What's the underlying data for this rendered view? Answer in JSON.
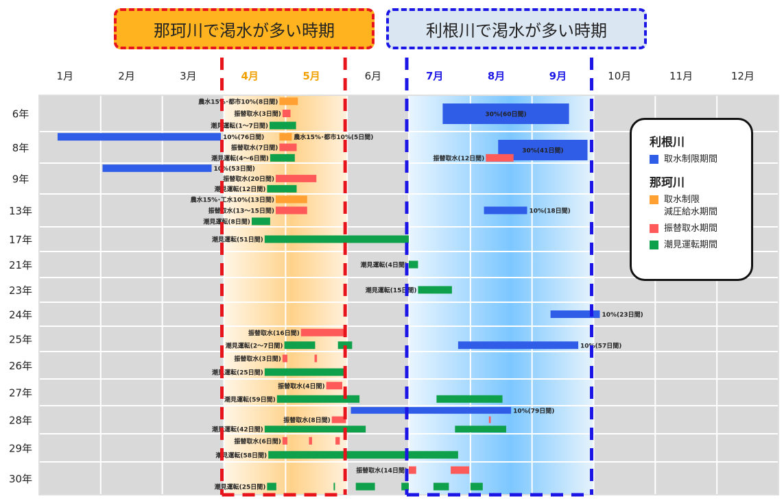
{
  "colors": {
    "tone_restriction": "#2f5de8",
    "naka_restriction": "#ffa033",
    "naka_transfer": "#ff5a5a",
    "naka_tidal": "#0ea04a",
    "naka_zone": "#ffb31f",
    "tone_zone": "#7cc7ff",
    "naka_month_text": "#f0a000",
    "tone_month_text": "#1b16e6"
  },
  "header": {
    "naka_period_label": "那珂川で渇水が多い時期",
    "tone_period_label": "利根川で渇水が多い時期"
  },
  "legend": {
    "tone_title": "利根川",
    "tone_items": [
      {
        "label": "取水制限期間",
        "color_key": "tone_restriction"
      }
    ],
    "naka_title": "那珂川",
    "naka_items": [
      {
        "label": "取水制限\n減圧給水期間",
        "color_key": "naka_restriction"
      },
      {
        "label": "振替取水期間",
        "color_key": "naka_transfer"
      },
      {
        "label": "潮見運転期間",
        "color_key": "naka_tidal"
      }
    ]
  },
  "chart_data": {
    "type": "gantt",
    "x_axis": {
      "months": [
        "1月",
        "2月",
        "3月",
        "4月",
        "5月",
        "6月",
        "7月",
        "8月",
        "9月",
        "10月",
        "11月",
        "12月"
      ],
      "naka_months": [
        4,
        5
      ],
      "tone_months": [
        7,
        8,
        9
      ]
    },
    "naka_dry_period": {
      "start": 4.0,
      "end": 6.0
    },
    "tone_dry_period": {
      "start": 7.0,
      "end": 10.0
    },
    "rows": [
      {
        "year": "6年",
        "bars": [
          {
            "type": "naka_restriction",
            "start": 4.9,
            "end": 5.2,
            "lane": 0,
            "label": "農水15%･都市10%(8日間)",
            "label_side": "left"
          },
          {
            "type": "naka_transfer",
            "start": 4.95,
            "end": 5.08,
            "lane": 1,
            "label": "振替取水(3日間)",
            "label_side": "left"
          },
          {
            "type": "naka_tidal",
            "start": 4.74,
            "end": 5.17,
            "lane": 2,
            "label": "潮見運転(1～7日間)",
            "label_side": "left"
          },
          {
            "type": "tone_restriction",
            "start": 7.55,
            "end": 9.6,
            "lane": 0,
            "big": true,
            "label": "30%(60日間)",
            "label_side": "inside"
          }
        ]
      },
      {
        "year": "8年",
        "bars": [
          {
            "type": "tone_restriction",
            "start": 1.3,
            "end": 3.95,
            "lane": 0,
            "label": "10%(76日間)",
            "label_side": "right"
          },
          {
            "type": "naka_restriction",
            "start": 4.9,
            "end": 5.1,
            "lane": 0,
            "label": "農水15%･都市10%(5日間)",
            "label_side": "right"
          },
          {
            "type": "tone_restriction",
            "start": 8.45,
            "end": 9.9,
            "lane": 0,
            "big": true,
            "label": "30%(41日間)",
            "label_side": "inside"
          },
          {
            "type": "naka_transfer",
            "start": 4.9,
            "end": 5.18,
            "lane": 1,
            "label": "振替取水(7日間)",
            "label_side": "left"
          },
          {
            "type": "naka_transfer",
            "start": 8.25,
            "end": 8.7,
            "lane": 2,
            "label": "振替取水(12日間)",
            "label_side": "left"
          },
          {
            "type": "naka_tidal",
            "start": 4.75,
            "end": 5.15,
            "lane": 2,
            "label": "潮見運転(4～6日間)",
            "label_side": "left"
          }
        ]
      },
      {
        "year": "9年",
        "bars": [
          {
            "type": "tone_restriction",
            "start": 2.03,
            "end": 3.8,
            "lane": 0,
            "label": "10%(53日間)",
            "label_side": "right"
          },
          {
            "type": "naka_transfer",
            "start": 4.84,
            "end": 5.5,
            "lane": 1,
            "label": "振替取水(20日間)",
            "label_side": "left"
          },
          {
            "type": "naka_tidal",
            "start": 4.7,
            "end": 5.18,
            "lane": 2,
            "label": "潮見運転(12日間)",
            "label_side": "left"
          }
        ]
      },
      {
        "year": "13年",
        "bars": [
          {
            "type": "naka_restriction",
            "start": 4.84,
            "end": 5.35,
            "lane": 0,
            "label": "農水15%･工水10%(13日間)",
            "label_side": "left"
          },
          {
            "type": "naka_transfer",
            "start": 4.84,
            "end": 5.35,
            "lane": 1,
            "label": "振替取水(13～15日間)",
            "label_side": "left"
          },
          {
            "type": "tone_restriction",
            "start": 8.22,
            "end": 8.92,
            "lane": 1,
            "label": "10%(18日間)",
            "label_side": "right"
          },
          {
            "type": "naka_tidal",
            "start": 4.45,
            "end": 4.75,
            "lane": 2,
            "label": "潮見運転(8日間)",
            "label_side": "left"
          }
        ]
      },
      {
        "year": "17年",
        "bars": [
          {
            "type": "naka_tidal",
            "start": 4.66,
            "end": 7.0,
            "lane": 0,
            "label": "潮見運転(51日間)",
            "label_side": "left"
          }
        ]
      },
      {
        "year": "21年",
        "bars": [
          {
            "type": "naka_tidal",
            "start": 7.0,
            "end": 7.15,
            "lane": 0,
            "label": "潮見運転(4日間)",
            "label_side": "left"
          }
        ]
      },
      {
        "year": "23年",
        "bars": [
          {
            "type": "naka_tidal",
            "start": 7.15,
            "end": 7.7,
            "lane": 0,
            "label": "潮見運転(15日間)",
            "label_side": "left"
          }
        ]
      },
      {
        "year": "24年",
        "bars": [
          {
            "type": "tone_restriction",
            "start": 9.3,
            "end": 10.1,
            "lane": 0,
            "label": "10%(23日間)",
            "label_side": "right"
          }
        ]
      },
      {
        "year": "25年",
        "bars": [
          {
            "type": "naka_transfer",
            "start": 5.25,
            "end": 5.98,
            "lane": 0,
            "label": "振替取水(16日間)",
            "label_side": "left"
          },
          {
            "type": "tone_restriction",
            "start": 7.8,
            "end": 9.75,
            "lane": 1,
            "label": "10%(57日間)",
            "label_side": "right"
          },
          {
            "type": "naka_tidal",
            "start": 4.98,
            "end": 5.48,
            "lane": 1,
            "label": "潮見運転(2～7日間)",
            "label_side": "left"
          },
          {
            "type": "naka_tidal",
            "start": 5.85,
            "end": 6.08,
            "lane": 1,
            "label": "",
            "label_side": "none"
          }
        ]
      },
      {
        "year": "26年",
        "bars": [
          {
            "type": "naka_transfer",
            "start": 4.95,
            "end": 5.03,
            "lane": 0,
            "label": "振替取水(3日間)",
            "label_side": "left"
          },
          {
            "type": "naka_transfer",
            "start": 5.47,
            "end": 5.51,
            "lane": 0,
            "label": "",
            "label_side": "none"
          },
          {
            "type": "naka_tidal",
            "start": 4.66,
            "end": 5.98,
            "lane": 1,
            "label": "潮見運転(25日間)",
            "label_side": "left"
          }
        ]
      },
      {
        "year": "27年",
        "bars": [
          {
            "type": "naka_transfer",
            "start": 5.66,
            "end": 5.92,
            "lane": 0,
            "label": "振替取水(4日間)",
            "label_side": "left"
          },
          {
            "type": "naka_tidal",
            "start": 4.86,
            "end": 6.2,
            "lane": 1,
            "label": "潮見運転(59日間)",
            "label_side": "left"
          },
          {
            "type": "naka_tidal",
            "start": 7.45,
            "end": 8.52,
            "lane": 1,
            "label": "",
            "label_side": "none"
          }
        ]
      },
      {
        "year": "28年",
        "bars": [
          {
            "type": "tone_restriction",
            "start": 6.06,
            "end": 8.66,
            "lane": 0,
            "label": "10%(79日間)",
            "label_side": "right"
          },
          {
            "type": "naka_transfer",
            "start": 5.75,
            "end": 5.98,
            "lane": 1,
            "label": "振替取水(8日間)",
            "label_side": "left"
          },
          {
            "type": "naka_transfer",
            "start": 8.3,
            "end": 8.33,
            "lane": 1,
            "label": "",
            "label_side": "none"
          },
          {
            "type": "naka_tidal",
            "start": 4.66,
            "end": 6.3,
            "lane": 2,
            "label": "潮見運転(42日間)",
            "label_side": "left"
          },
          {
            "type": "naka_tidal",
            "start": 7.75,
            "end": 8.58,
            "lane": 2,
            "label": "",
            "label_side": "none"
          }
        ]
      },
      {
        "year": "29年",
        "bars": [
          {
            "type": "naka_transfer",
            "start": 4.95,
            "end": 5.03,
            "lane": 0,
            "label": "振替取水(6日間)",
            "label_side": "left"
          },
          {
            "type": "naka_transfer",
            "start": 5.38,
            "end": 5.43,
            "lane": 0,
            "label": "",
            "label_side": "none"
          },
          {
            "type": "naka_transfer",
            "start": 5.81,
            "end": 5.88,
            "lane": 0,
            "label": "",
            "label_side": "none"
          },
          {
            "type": "naka_tidal",
            "start": 4.72,
            "end": 7.8,
            "lane": 1,
            "label": "潮見運転(58日間)",
            "label_side": "left"
          }
        ]
      },
      {
        "year": "30年",
        "bars": [
          {
            "type": "naka_transfer",
            "start": 7.0,
            "end": 7.12,
            "lane": 0,
            "label": "振替取水(14日間)",
            "label_side": "left"
          },
          {
            "type": "naka_transfer",
            "start": 7.68,
            "end": 7.98,
            "lane": 0,
            "label": "",
            "label_side": "none"
          },
          {
            "type": "naka_tidal",
            "start": 4.7,
            "end": 4.85,
            "lane": 1,
            "label": "潮見運転(25日間)",
            "label_side": "left"
          },
          {
            "type": "naka_tidal",
            "start": 5.78,
            "end": 5.8,
            "lane": 1,
            "label": "",
            "label_side": "none"
          },
          {
            "type": "naka_tidal",
            "start": 6.14,
            "end": 6.45,
            "lane": 1,
            "label": "",
            "label_side": "none"
          },
          {
            "type": "naka_tidal",
            "start": 6.88,
            "end": 7.0,
            "lane": 1,
            "label": "",
            "label_side": "none"
          },
          {
            "type": "naka_tidal",
            "start": 7.4,
            "end": 7.65,
            "lane": 1,
            "label": "",
            "label_side": "none"
          },
          {
            "type": "naka_tidal",
            "start": 8.0,
            "end": 8.2,
            "lane": 1,
            "label": "",
            "label_side": "none"
          }
        ]
      }
    ]
  }
}
